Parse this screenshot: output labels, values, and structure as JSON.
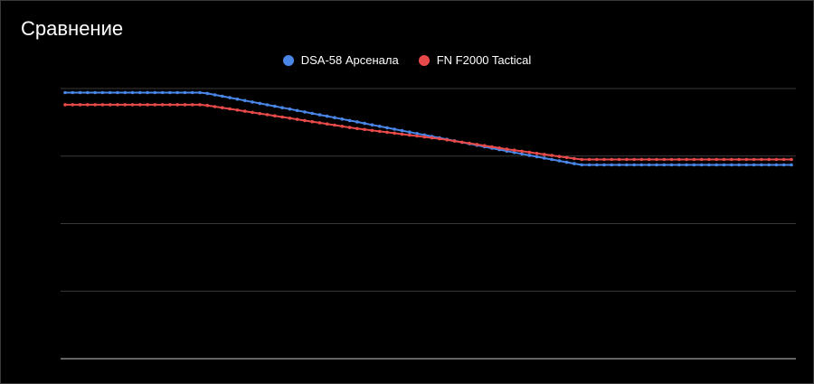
{
  "title": "Сравнение",
  "legend": {
    "series_1": "DSA-58 Арсенала",
    "series_2": "FN F2000 Tactical"
  },
  "colors": {
    "series_1": "#4a86e8",
    "series_2": "#e84a4a",
    "grid": "#3a3a3a",
    "baseline": "#c8c8c8"
  },
  "chart_data": {
    "type": "line",
    "title": "Сравнение",
    "xlabel": "",
    "ylabel": "",
    "grid": true,
    "legend_position": "top",
    "ylim": [
      0,
      4
    ],
    "x": [
      0,
      10,
      19,
      40,
      52,
      61,
      71,
      100
    ],
    "series": [
      {
        "name": "DSA-58 Арсенала",
        "values": [
          3.94,
          3.94,
          3.94,
          3.51,
          3.26,
          3.07,
          2.87,
          2.87
        ]
      },
      {
        "name": "FN F2000 Tactical",
        "values": [
          3.76,
          3.76,
          3.76,
          3.41,
          3.25,
          3.1,
          2.95,
          2.95
        ]
      }
    ],
    "markers_per_series": 98
  }
}
